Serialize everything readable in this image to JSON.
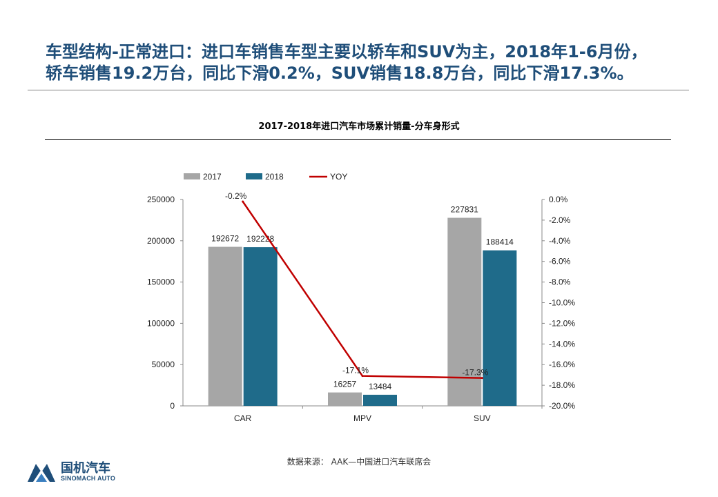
{
  "headline": {
    "line1": "车型结构-正常进口：进口车销售车型主要以轿车和SUV为主，2018年1-6月份，",
    "line2": "轿车销售19.2万台，同比下滑0.2%，SUV销售18.8万台，同比下滑17.3%。"
  },
  "source": "数据来源： AAK—中国进口汽车联席会",
  "logo": {
    "name_cn": "国机汽车",
    "name_en": "SINOMACH AUTO",
    "icon": "mountain-logo-icon"
  },
  "colors": {
    "s2017": "#a6a6a6",
    "s2018": "#1f6b8a",
    "yoy": "#c00000",
    "headline": "#1f4e79"
  },
  "chart_data": {
    "type": "bar",
    "title": "2017-2018年进口汽车市场累计销量-分车身形式",
    "categories": [
      "CAR",
      "MPV",
      "SUV"
    ],
    "series": [
      {
        "name": "2017",
        "kind": "bar",
        "axis": "left",
        "values": [
          192672,
          16257,
          227831
        ],
        "labels": [
          "192672",
          "16257",
          "227831"
        ]
      },
      {
        "name": "2018",
        "kind": "bar",
        "axis": "left",
        "values": [
          192228,
          13484,
          188414
        ],
        "labels": [
          "192228",
          "13484",
          "188414"
        ]
      },
      {
        "name": "YOY",
        "kind": "line",
        "axis": "right",
        "values": [
          -0.2,
          -17.1,
          -17.3
        ],
        "labels": [
          "-0.2%",
          "-17.1%",
          "-17.3%"
        ]
      }
    ],
    "y_left": {
      "min": 0,
      "max": 250000,
      "ticks": [
        "0",
        "50000",
        "100000",
        "150000",
        "200000",
        "250000"
      ]
    },
    "y_right": {
      "min": -20,
      "max": 0,
      "ticks": [
        "0.0%",
        "-2.0%",
        "-4.0%",
        "-6.0%",
        "-8.0%",
        "-10.0%",
        "-12.0%",
        "-14.0%",
        "-16.0%",
        "-18.0%",
        "-20.0%"
      ]
    },
    "legend": "top-left",
    "grid": false
  }
}
